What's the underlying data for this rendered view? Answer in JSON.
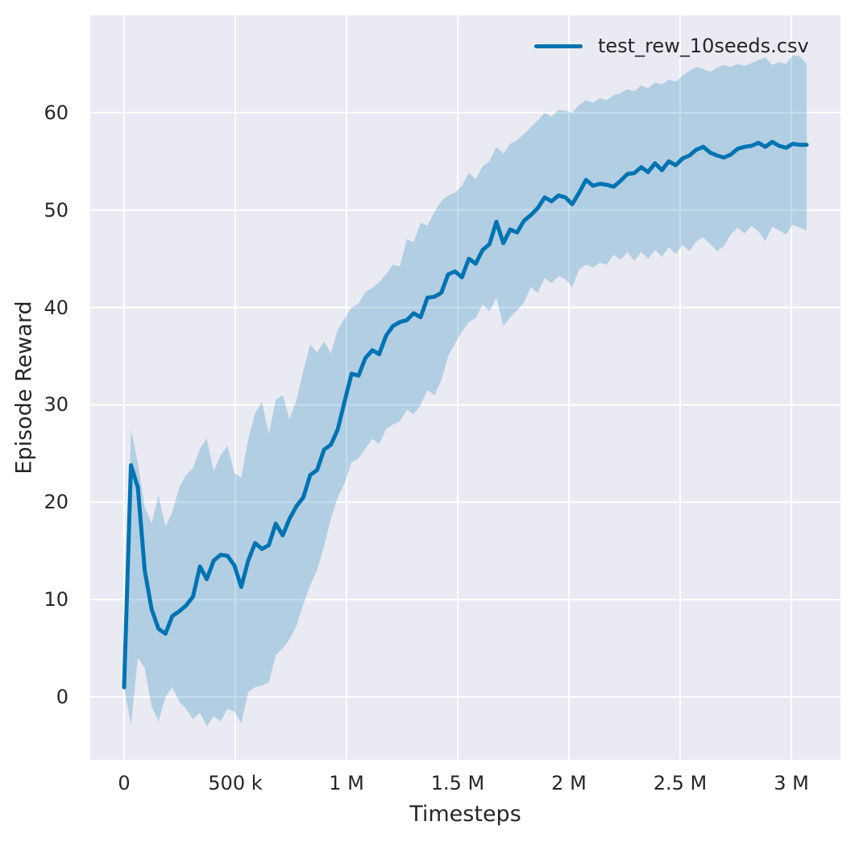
{
  "figure": {
    "background": "#ffffff",
    "plot_background": "#eaeaf2",
    "grid_color": "#ffffff",
    "text_color": "#262626"
  },
  "chart_data": {
    "type": "line",
    "title": "",
    "xlabel": "Timesteps",
    "ylabel": "Episode Reward",
    "grid": true,
    "legend_position": "upper right",
    "legend": [
      {
        "label": "test_rew_10seeds.csv",
        "color": "#0173b2"
      }
    ],
    "x_units": "timesteps in thousands",
    "xlim_k": [
      -152,
      3221
    ],
    "ylim": [
      -6.45,
      70
    ],
    "xticks": [
      {
        "value": 0,
        "label": "0"
      },
      {
        "value": 500,
        "label": "500 k"
      },
      {
        "value": 1000,
        "label": "1 M"
      },
      {
        "value": 1500,
        "label": "1.5 M"
      },
      {
        "value": 2000,
        "label": "2 M"
      },
      {
        "value": 2500,
        "label": "2.5 M"
      },
      {
        "value": 3000,
        "label": "3 M"
      }
    ],
    "yticks": [
      {
        "value": 0,
        "label": "0"
      },
      {
        "value": 10,
        "label": "10"
      },
      {
        "value": 20,
        "label": "20"
      },
      {
        "value": 30,
        "label": "30"
      },
      {
        "value": 40,
        "label": "40"
      },
      {
        "value": 50,
        "label": "50"
      },
      {
        "value": 60,
        "label": "60"
      }
    ],
    "series": [
      {
        "name": "test_rew_10seeds.csv",
        "color": "#0173b2",
        "line_width": 5,
        "band_color": "#0173b2",
        "band_opacity": 0.24,
        "x_k": [
          0,
          31,
          62,
          93,
          124,
          155,
          186,
          217,
          248,
          279,
          310,
          341,
          372,
          403,
          434,
          465,
          496,
          527,
          558,
          589,
          620,
          651,
          682,
          713,
          744,
          775,
          806,
          837,
          868,
          899,
          930,
          961,
          992,
          1023,
          1054,
          1085,
          1116,
          1147,
          1178,
          1209,
          1240,
          1271,
          1302,
          1333,
          1364,
          1395,
          1426,
          1457,
          1488,
          1519,
          1550,
          1581,
          1612,
          1643,
          1674,
          1705,
          1736,
          1767,
          1798,
          1829,
          1860,
          1891,
          1922,
          1953,
          1984,
          2015,
          2046,
          2077,
          2108,
          2139,
          2170,
          2201,
          2232,
          2263,
          2294,
          2325,
          2356,
          2387,
          2418,
          2449,
          2480,
          2511,
          2542,
          2573,
          2604,
          2635,
          2666,
          2697,
          2728,
          2759,
          2790,
          2821,
          2852,
          2883,
          2914,
          2945,
          2976,
          3007,
          3038,
          3069
        ],
        "mean": [
          1.0,
          23.8,
          21.5,
          13.0,
          9.0,
          7.0,
          6.5,
          8.3,
          8.8,
          9.4,
          10.3,
          13.4,
          12.1,
          14.0,
          14.6,
          14.5,
          13.5,
          11.3,
          14.0,
          15.8,
          15.2,
          15.6,
          17.8,
          16.6,
          18.3,
          19.6,
          20.5,
          22.8,
          23.3,
          25.4,
          25.9,
          27.5,
          30.4,
          33.2,
          33.0,
          34.8,
          35.6,
          35.2,
          37.1,
          38.1,
          38.5,
          38.7,
          39.4,
          39.0,
          41.0,
          41.1,
          41.5,
          43.4,
          43.7,
          43.1,
          45.0,
          44.5,
          45.9,
          46.5,
          48.8,
          46.6,
          48.0,
          47.7,
          48.9,
          49.5,
          50.2,
          51.3,
          50.9,
          51.5,
          51.3,
          50.6,
          51.8,
          53.1,
          52.5,
          52.7,
          52.6,
          52.4,
          53.0,
          53.7,
          53.8,
          54.4,
          53.9,
          54.8,
          54.1,
          55.0,
          54.6,
          55.3,
          55.6,
          56.2,
          56.5,
          55.9,
          55.6,
          55.4,
          55.7,
          56.3,
          56.5,
          56.6,
          56.9,
          56.5,
          57.0,
          56.6,
          56.4,
          56.8,
          56.7,
          56.7
        ],
        "band_lower": [
          1.0,
          -2.9,
          4.0,
          3.0,
          -1.0,
          -2.5,
          0.0,
          1.0,
          -0.5,
          -1.2,
          -2.3,
          -1.6,
          -3.0,
          -2.0,
          -2.5,
          -1.2,
          -1.5,
          -2.7,
          0.5,
          1.0,
          1.2,
          1.5,
          4.3,
          5.0,
          5.9,
          7.3,
          9.5,
          11.5,
          13.0,
          15.5,
          18.3,
          20.5,
          22.0,
          24.1,
          24.5,
          25.5,
          26.5,
          26.0,
          27.5,
          28.0,
          28.3,
          29.5,
          29.0,
          30.0,
          31.5,
          31.0,
          32.5,
          35.0,
          36.3,
          37.5,
          38.5,
          38.9,
          40.3,
          39.6,
          41.0,
          38.1,
          39.0,
          39.7,
          40.5,
          42.1,
          41.5,
          43.0,
          42.5,
          43.2,
          42.9,
          42.1,
          43.9,
          44.4,
          44.1,
          44.6,
          44.4,
          45.4,
          44.9,
          45.7,
          44.8,
          45.7,
          45.0,
          45.9,
          45.2,
          46.2,
          45.5,
          46.4,
          45.8,
          46.8,
          47.2,
          46.5,
          45.8,
          46.3,
          47.5,
          48.2,
          47.6,
          48.4,
          47.8,
          46.8,
          48.3,
          47.9,
          47.5,
          48.5,
          48.2,
          47.9
        ],
        "band_upper": [
          1.0,
          27.5,
          24.0,
          19.5,
          17.8,
          20.7,
          17.5,
          19.0,
          21.5,
          22.8,
          23.5,
          25.5,
          26.5,
          23.2,
          24.8,
          25.8,
          23.0,
          22.5,
          26.5,
          29.1,
          30.3,
          27.0,
          30.5,
          31.0,
          28.5,
          30.5,
          33.5,
          36.2,
          35.4,
          36.5,
          35.3,
          37.7,
          38.9,
          40.0,
          40.4,
          41.6,
          42.0,
          42.6,
          43.4,
          44.4,
          44.2,
          47.0,
          46.7,
          48.7,
          48.4,
          49.8,
          50.9,
          51.5,
          51.8,
          52.5,
          53.8,
          53.2,
          54.5,
          55.0,
          56.5,
          55.8,
          56.8,
          57.2,
          57.8,
          58.5,
          59.2,
          60.0,
          59.6,
          60.3,
          60.2,
          60.0,
          60.8,
          61.3,
          61.0,
          61.5,
          61.3,
          61.8,
          62.0,
          62.4,
          62.2,
          62.8,
          62.5,
          63.1,
          62.9,
          63.4,
          63.2,
          63.8,
          64.3,
          64.7,
          64.5,
          64.2,
          64.6,
          64.9,
          64.7,
          65.0,
          64.8,
          65.1,
          65.4,
          65.7,
          64.9,
          65.2,
          65.0,
          65.9,
          65.8,
          65.0
        ]
      }
    ]
  }
}
